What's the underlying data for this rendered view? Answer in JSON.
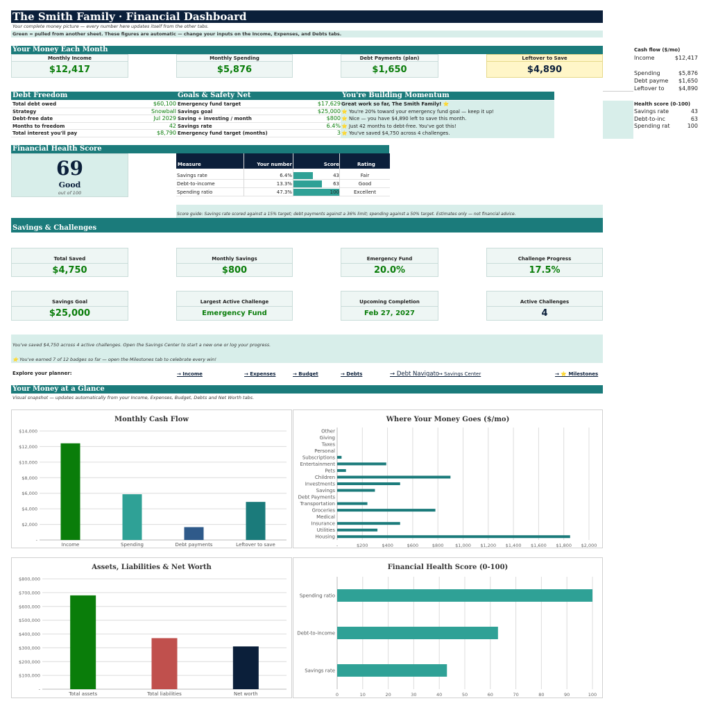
{
  "header": {
    "title": "The Smith Family  ·  Financial Dashboard",
    "subtitle": "Your complete money picture — every number here updates itself from the other tabs.",
    "note": "Green = pulled from another sheet.  These figures are automatic — change your inputs on the Income, Expenses, and Debts tabs."
  },
  "money_each_month": {
    "heading": "Your Money Each Month",
    "cards": [
      {
        "label": "Monthly Income",
        "value": "$12,417"
      },
      {
        "label": "Monthly Spending",
        "value": "$5,876"
      },
      {
        "label": "Debt Payments (plan)",
        "value": "$1,650"
      },
      {
        "label": "Leftover to Save",
        "value": "$4,890"
      }
    ]
  },
  "side_panel": {
    "cashflow_heading": "Cash flow ($/mo)",
    "cashflow": [
      {
        "label": "Income",
        "value": "$12,417"
      },
      {
        "label": "Spending",
        "value": "$5,876"
      },
      {
        "label": "Debt payme",
        "value": "$1,650"
      },
      {
        "label": "Leftover to",
        "value": "$4,890"
      }
    ],
    "health_heading": "Health score (0-100)",
    "health": [
      {
        "label": "Savings rate",
        "value": "43"
      },
      {
        "label": "Debt-to-inc",
        "value": "63"
      },
      {
        "label": "Spending rat",
        "value": "100"
      }
    ]
  },
  "debt_freedom": {
    "heading": "Debt Freedom",
    "rows": [
      {
        "label": "Total debt owed",
        "value": "$60,100"
      },
      {
        "label": "Strategy",
        "value": "Snowball"
      },
      {
        "label": "Debt-free date",
        "value": "Jul 2029"
      },
      {
        "label": "Months to freedom",
        "value": "42"
      },
      {
        "label": "Total interest you'll pay",
        "value": "$8,790"
      }
    ]
  },
  "goals": {
    "heading": "Goals & Safety Net",
    "rows": [
      {
        "label": "Emergency fund target",
        "value": "$17,629"
      },
      {
        "label": "Savings goal",
        "value": "$25,000"
      },
      {
        "label": "Saving + investing / month",
        "value": "$800"
      },
      {
        "label": "Savings rate",
        "value": "6.4%"
      },
      {
        "label": "Emergency fund target (months)",
        "value": "3"
      }
    ]
  },
  "momentum": {
    "heading": "You're Building Momentum",
    "lines": [
      "Great work so far, The Smith Family! ⭐",
      "⭐ You're 20% toward your emergency fund goal — keep it up!",
      "⭐ Nice — you have $4,890 left to save this month.",
      "⭐ Just 42 months to debt-free. You've got this!",
      "⭐ You've saved $4,750 across 4 challenges."
    ]
  },
  "health_score": {
    "heading": "Financial Health Score",
    "score": "69",
    "rating": "Good",
    "out_of": "out of 100",
    "table_headers": [
      "Measure",
      "Your number",
      "Score",
      "Rating"
    ],
    "rows": [
      {
        "measure": "Savings rate",
        "number": "6.4%",
        "score": 43,
        "rating": "Fair"
      },
      {
        "measure": "Debt-to-income",
        "number": "13.3%",
        "score": 63,
        "rating": "Good"
      },
      {
        "measure": "Spending ratio",
        "number": "47.3%",
        "score": 100,
        "rating": "Excellent"
      }
    ],
    "guide": "Score guide: Savings rate scored against a 15% target; debt payments against a 36% limit; spending against a 50% target. Estimates only — not financial advice."
  },
  "savings": {
    "heading": "Savings & Challenges",
    "cards_row1": [
      {
        "label": "Total Saved",
        "value": "$4,750"
      },
      {
        "label": "Monthly Savings",
        "value": "$800"
      },
      {
        "label": "Emergency Fund",
        "value": "20.0%"
      },
      {
        "label": "Challenge Progress",
        "value": "17.5%"
      }
    ],
    "cards_row2": [
      {
        "label": "Savings Goal",
        "value": "$25,000"
      },
      {
        "label": "Largest Active Challenge",
        "value": "Emergency Fund"
      },
      {
        "label": "Upcoming Completion",
        "value": "Feb 27, 2027"
      },
      {
        "label": "Active Challenges",
        "value": "4"
      }
    ],
    "note1": "You've saved $4,750 across 4 active challenges. Open the Savings Center to start a new one or log your progress.",
    "note2": "⭐ You've earned 7 of 12 badges so far — open the Milestones tab to celebrate every win!"
  },
  "explore": {
    "label": "Explore your planner:",
    "links": [
      "→ Income",
      "→ Expenses",
      "→ Budget",
      "→ Debts",
      "→ Debt Navigato",
      "→ Savings Center",
      "→ ⭐ Milestones"
    ]
  },
  "glance": {
    "heading": "Your Money at a Glance",
    "subtitle": "Visual snapshot — updates automatically from your Income, Expenses, Budget, Debts and Net Worth tabs."
  },
  "colors": {
    "teal": "#1b7b7b",
    "navy": "#0b1f3a",
    "green": "#0a7d0a",
    "mint": "#d8eeea",
    "yellow": "#fff6c8"
  },
  "chart_data": [
    {
      "type": "bar",
      "title": "Monthly Cash Flow",
      "categories": [
        "Income",
        "Spending",
        "Debt payments",
        "Leftover to save"
      ],
      "values": [
        12417,
        5876,
        1650,
        4890
      ],
      "colors": [
        "#0a7d0a",
        "#2fa196",
        "#2f5a8a",
        "#1b7b7b"
      ],
      "ylim": [
        0,
        14000
      ],
      "yticks": [
        "-",
        "$2,000",
        "$4,000",
        "$6,000",
        "$8,000",
        "$10,000",
        "$12,000",
        "$14,000"
      ]
    },
    {
      "type": "bar",
      "orientation": "horizontal",
      "title": "Where Your Money Goes ($/mo)",
      "categories": [
        "Housing",
        "Utilities",
        "Insurance",
        "Medical",
        "Groceries",
        "Transportation",
        "Debt Payments",
        "Savings",
        "Investments",
        "Children",
        "Pets",
        "Entertainment",
        "Subscriptions",
        "Personal",
        "Taxes",
        "Giving",
        "Other"
      ],
      "values": [
        1850,
        320,
        500,
        0,
        780,
        240,
        0,
        300,
        500,
        900,
        70,
        390,
        35,
        0,
        0,
        0,
        0
      ],
      "xlim": [
        0,
        2000
      ],
      "xticks": [
        "-",
        "$200",
        "$400",
        "$600",
        "$800",
        "$1,000",
        "$1,200",
        "$1,400",
        "$1,600",
        "$1,800",
        "$2,000"
      ]
    },
    {
      "type": "bar",
      "title": "Assets, Liabilities & Net Worth",
      "categories": [
        "Total assets",
        "Total liabilities",
        "Net worth"
      ],
      "values": [
        680000,
        370000,
        310000
      ],
      "colors": [
        "#0a7d0a",
        "#c0504d",
        "#0b1f3a"
      ],
      "ylim": [
        0,
        800000
      ],
      "yticks": [
        "-",
        "$100,000",
        "$200,000",
        "$300,000",
        "$400,000",
        "$500,000",
        "$600,000",
        "$700,000",
        "$800,000"
      ]
    },
    {
      "type": "bar",
      "orientation": "horizontal",
      "title": "Financial Health Score (0-100)",
      "categories": [
        "Savings rate",
        "Debt-to-income",
        "Spending ratio"
      ],
      "values": [
        43,
        63,
        100
      ],
      "xlim": [
        0,
        100
      ],
      "xticks": [
        "0",
        "10",
        "20",
        "30",
        "40",
        "50",
        "60",
        "70",
        "80",
        "90",
        "100"
      ]
    }
  ]
}
